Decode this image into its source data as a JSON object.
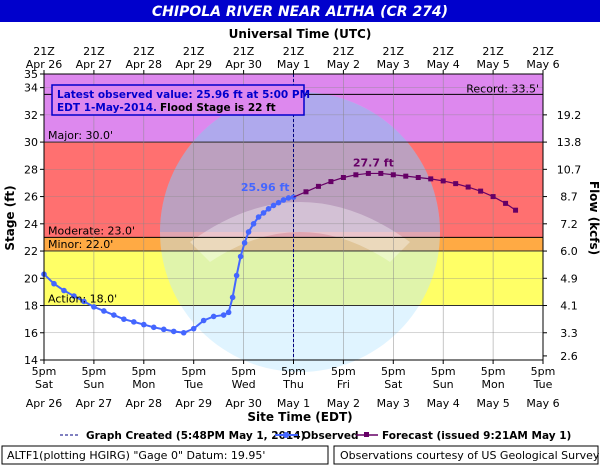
{
  "header": {
    "title": "CHIPOLA RIVER NEAR ALTHA (CR 274)"
  },
  "colors": {
    "title_bar": "#0000cc",
    "record": "#dd88ee",
    "major": "#ff7070",
    "moderate": "#ffaa44",
    "minor": "#ffff66",
    "action": "#ffffff",
    "observed": "#4466ff",
    "forecast": "#660066"
  },
  "chart_data": {
    "type": "line",
    "top_axis_label": "Universal Time (UTC)",
    "top_ticks": [
      {
        "t": "21Z",
        "d": "Apr 26"
      },
      {
        "t": "21Z",
        "d": "Apr 27"
      },
      {
        "t": "21Z",
        "d": "Apr 28"
      },
      {
        "t": "21Z",
        "d": "Apr 29"
      },
      {
        "t": "21Z",
        "d": "Apr 30"
      },
      {
        "t": "21Z",
        "d": "May 1"
      },
      {
        "t": "21Z",
        "d": "May 2"
      },
      {
        "t": "21Z",
        "d": "May 3"
      },
      {
        "t": "21Z",
        "d": "May 4"
      },
      {
        "t": "21Z",
        "d": "May 5"
      },
      {
        "t": "21Z",
        "d": "May 6"
      }
    ],
    "bottom_axis_label": "Site Time (EDT)",
    "bottom_ticks": [
      {
        "t": "5pm",
        "w": "Sat",
        "d": "Apr 26"
      },
      {
        "t": "5pm",
        "w": "Sun",
        "d": "Apr 27"
      },
      {
        "t": "5pm",
        "w": "Mon",
        "d": "Apr 28"
      },
      {
        "t": "5pm",
        "w": "Tue",
        "d": "Apr 29"
      },
      {
        "t": "5pm",
        "w": "Wed",
        "d": "Apr 30"
      },
      {
        "t": "5pm",
        "w": "Thu",
        "d": "May 1"
      },
      {
        "t": "5pm",
        "w": "Fri",
        "d": "May 2"
      },
      {
        "t": "5pm",
        "w": "Sat",
        "d": "May 3"
      },
      {
        "t": "5pm",
        "w": "Sun",
        "d": "May 4"
      },
      {
        "t": "5pm",
        "w": "Mon",
        "d": "May 5"
      },
      {
        "t": "5pm",
        "w": "Tue",
        "d": "May 6"
      }
    ],
    "xlim": [
      0,
      10
    ],
    "ylabel": "Stage (ft)",
    "ylim": [
      14,
      35
    ],
    "yticks": [
      14,
      16,
      18,
      20,
      22,
      24,
      26,
      28,
      30,
      32,
      34,
      35
    ],
    "y2label": "Flow (kcfs)",
    "y2ticks": [
      {
        "stage": 14.3,
        "label": "2.6"
      },
      {
        "stage": 16.0,
        "label": "3.3"
      },
      {
        "stage": 18.0,
        "label": "4.1"
      },
      {
        "stage": 20.0,
        "label": "4.9"
      },
      {
        "stage": 22.0,
        "label": "6.0"
      },
      {
        "stage": 24.0,
        "label": "7.2"
      },
      {
        "stage": 26.0,
        "label": "8.7"
      },
      {
        "stage": 28.0,
        "label": "10.7"
      },
      {
        "stage": 30.0,
        "label": "13.8"
      },
      {
        "stage": 32.0,
        "label": "19.2"
      }
    ],
    "flood_categories": [
      {
        "name": "record",
        "from": 30,
        "to": 35,
        "color": "#dd88ee",
        "label": "",
        "line": 33.5
      },
      {
        "name": "major",
        "from": 23,
        "to": 30,
        "color": "#ff7070",
        "label": "Major: 30.0'",
        "line": 30
      },
      {
        "name": "moderate",
        "from": 22,
        "to": 23,
        "color": "#ffaa44",
        "label": "Moderate: 23.0'",
        "line": 23
      },
      {
        "name": "minor",
        "from": 18,
        "to": 22,
        "color": "#ffff66",
        "label": "Minor: 22.0'",
        "line": 22
      },
      {
        "name": "action",
        "from": 14,
        "to": 18,
        "color": "#ffffff",
        "label": "Action: 18.0'",
        "line": 18
      }
    ],
    "record_label": "Record: 33.5'",
    "observed": [
      [
        0.0,
        20.3
      ],
      [
        0.2,
        19.6
      ],
      [
        0.4,
        19.1
      ],
      [
        0.6,
        18.7
      ],
      [
        0.8,
        18.3
      ],
      [
        1.0,
        17.9
      ],
      [
        1.2,
        17.6
      ],
      [
        1.4,
        17.3
      ],
      [
        1.6,
        17.0
      ],
      [
        1.8,
        16.8
      ],
      [
        2.0,
        16.6
      ],
      [
        2.2,
        16.4
      ],
      [
        2.4,
        16.25
      ],
      [
        2.6,
        16.1
      ],
      [
        2.8,
        16.0
      ],
      [
        3.0,
        16.3
      ],
      [
        3.2,
        16.9
      ],
      [
        3.4,
        17.2
      ],
      [
        3.6,
        17.3
      ],
      [
        3.7,
        17.5
      ],
      [
        3.78,
        18.6
      ],
      [
        3.86,
        20.2
      ],
      [
        3.94,
        21.6
      ],
      [
        4.02,
        22.6
      ],
      [
        4.1,
        23.4
      ],
      [
        4.2,
        24.0
      ],
      [
        4.3,
        24.5
      ],
      [
        4.4,
        24.8
      ],
      [
        4.5,
        25.1
      ],
      [
        4.6,
        25.35
      ],
      [
        4.7,
        25.55
      ],
      [
        4.8,
        25.75
      ],
      [
        4.9,
        25.9
      ],
      [
        5.0,
        25.96
      ]
    ],
    "observed_label": "25.96 ft",
    "forecast": [
      [
        5.0,
        25.96
      ],
      [
        5.25,
        26.35
      ],
      [
        5.5,
        26.75
      ],
      [
        5.75,
        27.1
      ],
      [
        6.0,
        27.4
      ],
      [
        6.25,
        27.6
      ],
      [
        6.5,
        27.7
      ],
      [
        6.75,
        27.7
      ],
      [
        7.0,
        27.6
      ],
      [
        7.25,
        27.5
      ],
      [
        7.5,
        27.4
      ],
      [
        7.75,
        27.3
      ],
      [
        8.0,
        27.15
      ],
      [
        8.25,
        26.95
      ],
      [
        8.5,
        26.7
      ],
      [
        8.75,
        26.4
      ],
      [
        9.0,
        26.0
      ],
      [
        9.25,
        25.5
      ],
      [
        9.45,
        25.0
      ]
    ],
    "forecast_label": "27.7 ft",
    "now_x": 5.0,
    "info_box": {
      "line1": "Latest observed value: 25.96 ft at 5:00 PM",
      "line2a": "EDT 1-May-2014.",
      "line2b": "Flood Stage is 22 ft"
    },
    "legend": [
      {
        "kind": "dashed",
        "label": "Graph Created (5:48PM May 1, 2014)"
      },
      {
        "kind": "observed",
        "label": "Observed"
      },
      {
        "kind": "forecast",
        "label": "Forecast (issued 9:21AM May 1)"
      }
    ],
    "watermark": "NATIONAL OCEANIC AND ATMOSPHERIC ADMINISTRATION · U.S. DEPARTMENT OF COMMERCE · NOAA"
  },
  "footer": {
    "left": "ALTF1(plotting HGIRG) \"Gage 0\" Datum: 19.95'",
    "right": "Observations courtesy of US Geological Survey"
  }
}
